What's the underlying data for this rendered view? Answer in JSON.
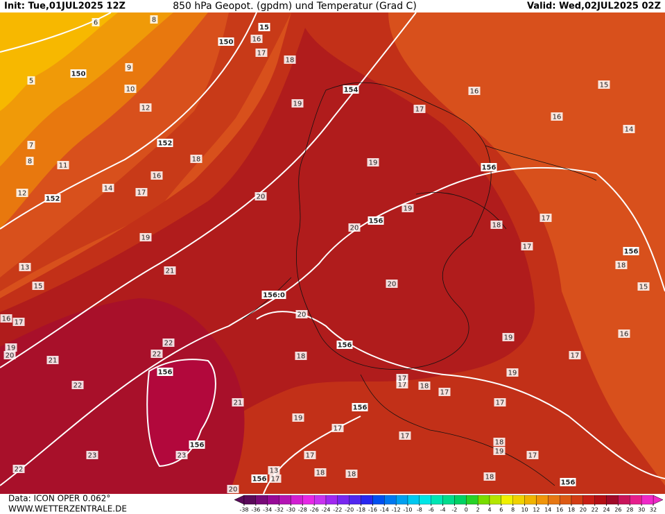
{
  "header": {
    "init": "Init: Tue,01JUL2025 12Z",
    "title": "850 hPa Geopot. (gpdm) und Temperatur (Grad C)",
    "valid": "Valid: Wed,02JUL2025 02Z"
  },
  "footer": {
    "data": "Data: ICON OPER 0.062°",
    "site": "WWW.WETTERZENTRALE.DE"
  },
  "colorbar": {
    "ticks": [
      -38,
      -36,
      -34,
      -32,
      -30,
      -28,
      -26,
      -24,
      -22,
      -20,
      -18,
      -16,
      -14,
      -12,
      -10,
      -8,
      -6,
      -4,
      -2,
      0,
      2,
      4,
      6,
      8,
      10,
      12,
      14,
      16,
      18,
      20,
      22,
      24,
      26,
      28,
      30,
      32
    ],
    "colors": [
      "#5a0a5a",
      "#780a78",
      "#960a96",
      "#b414b4",
      "#d21ed2",
      "#e628e6",
      "#c832f0",
      "#a028f0",
      "#7828f0",
      "#5028f0",
      "#2828f0",
      "#0050f0",
      "#0078f0",
      "#00a0f0",
      "#00c8f0",
      "#00e6e6",
      "#00e6b4",
      "#00dc8c",
      "#00d264",
      "#28d228",
      "#78dc00",
      "#b4e600",
      "#f0f000",
      "#f0d200",
      "#f0b400",
      "#f0960a",
      "#e67814",
      "#dc5a14",
      "#d23c14",
      "#c81e14",
      "#b40f14",
      "#a00a28",
      "#c8145a",
      "#e61e8c",
      "#f028c8"
    ]
  },
  "temperature_labels": [
    "5",
    "6",
    "8",
    "9",
    "10",
    "12",
    "7",
    "8",
    "11",
    "12",
    "14",
    "16",
    "17",
    "18",
    "19",
    "17",
    "16",
    "18",
    "20",
    "19",
    "19",
    "20",
    "17",
    "16",
    "15",
    "16",
    "14",
    "18",
    "17",
    "17",
    "18",
    "15",
    "16",
    "17",
    "19",
    "19",
    "17",
    "18",
    "19",
    "17",
    "20",
    "20",
    "18",
    "19",
    "21",
    "13",
    "15",
    "16",
    "17",
    "19",
    "20",
    "21",
    "22",
    "22",
    "22",
    "21",
    "23",
    "22",
    "23",
    "19",
    "17",
    "17",
    "17",
    "18",
    "18",
    "13",
    "17",
    "18",
    "17",
    "18",
    "17",
    "17",
    "20"
  ],
  "geopotential_labels": [
    "150",
    "150",
    "154",
    "152",
    "152",
    "156",
    "156",
    "156",
    "156:0",
    "156",
    "156",
    "156",
    "156",
    "156",
    "156",
    "15"
  ]
}
